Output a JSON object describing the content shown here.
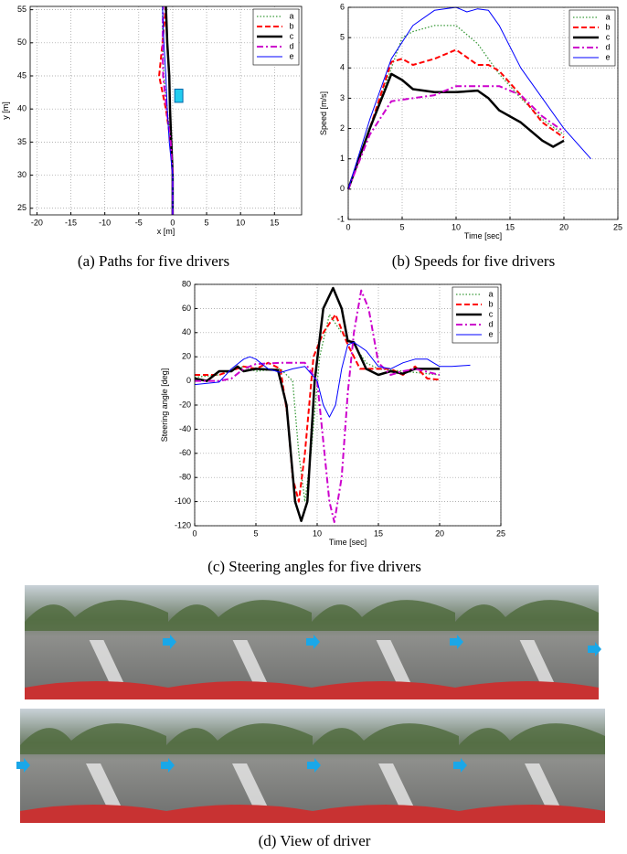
{
  "chart_data": [
    {
      "type": "line",
      "caption": "(a) Paths for five drivers",
      "xlabel": "x [m]",
      "ylabel": "y [m]",
      "xlim": [
        -21,
        19
      ],
      "xticks": [
        -20,
        -15,
        -10,
        -5,
        0,
        5,
        10,
        15
      ],
      "ylim": [
        24,
        55.5
      ],
      "yticks": [
        25,
        30,
        35,
        40,
        45,
        50,
        55
      ],
      "grid": true,
      "legend": "upper right",
      "series": [
        {
          "name": "a",
          "color": "#3a9a3a",
          "style": "dotted",
          "x": [
            0,
            0,
            -0.3,
            -0.8,
            -1.3,
            -1.5,
            -1.5
          ],
          "values": [
            24,
            30,
            35,
            40,
            45,
            50,
            55.5
          ]
        },
        {
          "name": "b",
          "color": "#ff0000",
          "style": "dashed",
          "x": [
            0,
            0,
            -0.3,
            -1,
            -2,
            -1.5,
            -1
          ],
          "values": [
            24,
            30,
            35,
            40,
            45,
            50,
            55.5
          ]
        },
        {
          "name": "c",
          "color": "#000000",
          "style": "solid",
          "x": [
            0,
            0,
            -0.2,
            -0.4,
            -0.5,
            -0.8,
            -1
          ],
          "values": [
            24,
            30,
            35,
            40,
            45,
            50,
            55.5
          ]
        },
        {
          "name": "d",
          "color": "#cc00cc",
          "style": "dash-dot",
          "x": [
            0,
            0,
            -0.3,
            -0.9,
            -1.4,
            -1.5,
            -1.4
          ],
          "values": [
            24,
            30,
            35,
            40,
            45,
            50,
            55.5
          ]
        },
        {
          "name": "e",
          "color": "#0000ff",
          "style": "solid",
          "x": [
            0,
            0,
            -0.5,
            -0.8,
            -1,
            -1.3,
            -1.5
          ],
          "values": [
            24,
            30,
            35,
            40,
            45,
            50,
            55.5
          ]
        }
      ]
    },
    {
      "type": "line",
      "caption": "(b) Speeds for five drivers",
      "xlabel": "Time [sec]",
      "ylabel": "Speed [m/s]",
      "xlim": [
        0,
        25
      ],
      "xticks": [
        0,
        5,
        10,
        15,
        20,
        25
      ],
      "ylim": [
        -1,
        6
      ],
      "yticks": [
        -1,
        0,
        1,
        2,
        3,
        4,
        5,
        6
      ],
      "grid": true,
      "legend": "upper right",
      "series": [
        {
          "name": "a",
          "color": "#3a9a3a",
          "style": "dotted",
          "x": [
            0,
            2,
            4,
            5,
            6,
            8,
            10,
            12,
            14,
            16,
            18,
            20
          ],
          "values": [
            0,
            2,
            4,
            5,
            5.2,
            5.4,
            5.4,
            4.8,
            3.8,
            3,
            2.3,
            1.8
          ]
        },
        {
          "name": "b",
          "color": "#ff0000",
          "style": "dashed",
          "x": [
            0,
            2,
            4,
            5,
            6,
            8,
            10,
            12,
            13,
            14,
            16,
            18,
            20
          ],
          "values": [
            0,
            2,
            4.2,
            4.3,
            4.1,
            4.3,
            4.6,
            4.1,
            4.1,
            3.9,
            3.1,
            2.2,
            1.7
          ]
        },
        {
          "name": "c",
          "color": "#000000",
          "style": "solid",
          "x": [
            0,
            2,
            4,
            5,
            6,
            8,
            10,
            12,
            13,
            14,
            16,
            18,
            19,
            20
          ],
          "values": [
            0,
            2,
            3.8,
            3.6,
            3.3,
            3.2,
            3.2,
            3.25,
            3,
            2.6,
            2.2,
            1.6,
            1.4,
            1.6
          ]
        },
        {
          "name": "d",
          "color": "#cc00cc",
          "style": "dash-dot",
          "x": [
            0,
            2,
            4,
            6,
            8,
            10,
            12,
            14,
            16,
            18,
            20
          ],
          "values": [
            0,
            1.8,
            2.9,
            3,
            3.1,
            3.4,
            3.4,
            3.4,
            3.1,
            2.4,
            1.9
          ]
        },
        {
          "name": "e",
          "color": "#0000ff",
          "style": "solid",
          "x": [
            0,
            2,
            4,
            6,
            8,
            10,
            11,
            12,
            13,
            14,
            16,
            18,
            20,
            22.5
          ],
          "values": [
            0,
            2.3,
            4.3,
            5.4,
            5.9,
            6,
            5.85,
            5.95,
            5.9,
            5.4,
            4,
            3,
            2,
            1
          ]
        }
      ]
    },
    {
      "type": "line",
      "caption": "(c) Steering angles for five drivers",
      "xlabel": "Time [sec]",
      "ylabel": "Steering angle [deg]",
      "xlim": [
        0,
        25
      ],
      "xticks": [
        0,
        5,
        10,
        15,
        20,
        25
      ],
      "ylim": [
        -120,
        80
      ],
      "yticks": [
        -120,
        -100,
        -80,
        -60,
        -40,
        -20,
        0,
        20,
        40,
        60,
        80
      ],
      "grid": true,
      "legend": "upper right",
      "series": [
        {
          "name": "a",
          "color": "#3a9a3a",
          "style": "dotted",
          "x": [
            0,
            2,
            4,
            5,
            7,
            8,
            8.5,
            9,
            9.5,
            10.2,
            11,
            12,
            13,
            14,
            15,
            17,
            20
          ],
          "values": [
            3,
            5,
            12,
            8,
            10,
            0,
            -60,
            -100,
            -60,
            20,
            55,
            40,
            30,
            15,
            10,
            8,
            5
          ]
        },
        {
          "name": "b",
          "color": "#ff0000",
          "style": "dashed",
          "x": [
            0,
            2,
            4,
            5,
            6,
            7,
            7.6,
            8,
            8.5,
            9,
            9.7,
            10.5,
            11.5,
            12.5,
            13.5,
            16,
            17,
            18,
            19,
            20
          ],
          "values": [
            5,
            5,
            12,
            10,
            15,
            10,
            -30,
            -80,
            -100,
            -60,
            20,
            40,
            55,
            30,
            10,
            10,
            5,
            12,
            2,
            1
          ]
        },
        {
          "name": "c",
          "color": "#000000",
          "style": "solid",
          "x": [
            0,
            1,
            2,
            3,
            3.5,
            4,
            5,
            6.8,
            7.5,
            8.2,
            8.7,
            9.2,
            9.8,
            10.5,
            11.3,
            12,
            12.5,
            13,
            14,
            15,
            16,
            17,
            18,
            20
          ],
          "values": [
            2,
            0,
            8,
            8,
            12,
            8,
            10,
            9,
            -20,
            -100,
            -116,
            -100,
            0,
            60,
            77,
            60,
            33,
            32,
            10,
            5,
            8,
            6,
            10,
            10
          ]
        },
        {
          "name": "d",
          "color": "#cc00cc",
          "style": "dash-dot",
          "x": [
            0,
            2,
            3,
            4,
            5,
            7,
            9,
            10,
            10.5,
            11,
            11.4,
            12,
            12.5,
            13,
            13.6,
            14.2,
            15,
            16,
            17,
            18,
            20
          ],
          "values": [
            0,
            0,
            2,
            10,
            14,
            15,
            15,
            0,
            -50,
            -100,
            -117,
            -80,
            -10,
            40,
            75,
            60,
            15,
            5,
            8,
            10,
            5
          ]
        },
        {
          "name": "e",
          "color": "#0000ff",
          "style": "solid",
          "x": [
            0,
            2,
            3,
            4,
            4.5,
            5,
            6,
            7,
            8,
            9,
            10,
            10.5,
            11,
            11.5,
            12,
            12.5,
            13,
            14,
            15,
            16,
            17,
            18,
            19,
            20,
            21,
            22.5
          ],
          "values": [
            -3,
            -1,
            10,
            18,
            20,
            18,
            10,
            7,
            10,
            12,
            0,
            -20,
            -30,
            -20,
            10,
            30,
            32,
            25,
            12,
            10,
            15,
            18,
            18,
            12,
            12,
            13
          ]
        }
      ]
    }
  ],
  "figure_d": {
    "caption": "(d) View of driver"
  }
}
